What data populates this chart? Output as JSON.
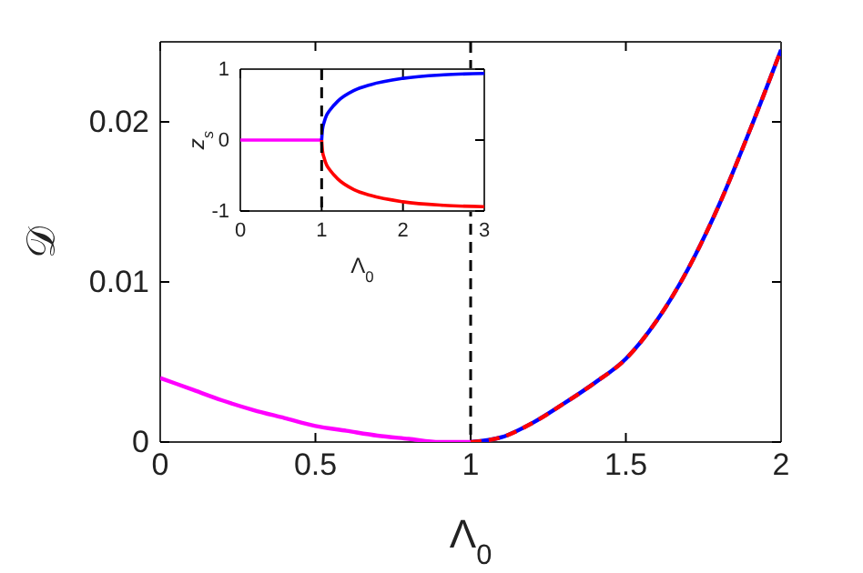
{
  "chart_data": [
    {
      "type": "line",
      "xlabel": "Λ$_{0}$",
      "ylabel": "𝒟",
      "xlim": [
        0,
        2
      ],
      "xticks": [
        0,
        0.5,
        1,
        1.5,
        2
      ],
      "ylim": [
        0,
        0.025
      ],
      "yticks": [
        0,
        0.01,
        0.02
      ],
      "grid": false,
      "ref_lines": [
        {
          "axis": "x",
          "value": 1,
          "color": "#000000",
          "line_style": "dashed"
        }
      ],
      "series": [
        {
          "color": "#ff00ff",
          "line_style": "solid",
          "x": [
            0,
            0.1,
            0.2,
            0.3,
            0.4,
            0.5,
            0.6,
            0.7,
            0.8,
            0.9,
            1
          ],
          "values": [
            0.004,
            0.0033,
            0.0026,
            0.002,
            0.0015,
            0.001,
            0.0007,
            0.0004,
            0.0002,
            0,
            0
          ]
        },
        {
          "color": "#0000ff",
          "line_style": "solid",
          "x": [
            1,
            1.1,
            1.2,
            1.3,
            1.4,
            1.5,
            1.6,
            1.7,
            1.8,
            1.9,
            2
          ],
          "values": [
            0,
            0.0003,
            0.0012,
            0.0024,
            0.0037,
            0.0052,
            0.0076,
            0.0108,
            0.0148,
            0.0195,
            0.0245
          ]
        },
        {
          "color": "#ff0000",
          "line_style": "dashed",
          "x": [
            1,
            1.1,
            1.2,
            1.3,
            1.4,
            1.5,
            1.6,
            1.7,
            1.8,
            1.9,
            2
          ],
          "values": [
            0,
            0.0003,
            0.0012,
            0.0024,
            0.0037,
            0.0052,
            0.0076,
            0.0108,
            0.0148,
            0.0195,
            0.0245
          ]
        }
      ]
    },
    {
      "type": "line",
      "xlabel": "Λ$_{0}$",
      "ylabel": "z$_{s}$",
      "xlim": [
        0,
        3
      ],
      "xticks": [
        0,
        1,
        2,
        3
      ],
      "ylim": [
        -1,
        1
      ],
      "yticks": [
        -1,
        0,
        1
      ],
      "grid": false,
      "ref_lines": [
        {
          "axis": "x",
          "value": 1,
          "color": "#000000",
          "line_style": "dashed"
        }
      ],
      "series": [
        {
          "color": "#ff00ff",
          "line_style": "solid",
          "x": [
            0,
            1
          ],
          "values": [
            0,
            0
          ]
        },
        {
          "color": "#0000ff",
          "line_style": "solid",
          "x": [
            1,
            1.01,
            1.03,
            1.06,
            1.1,
            1.2,
            1.4,
            1.6,
            2,
            2.5,
            3
          ],
          "values": [
            0,
            0.15,
            0.25,
            0.35,
            0.42,
            0.55,
            0.7,
            0.78,
            0.87,
            0.92,
            0.94
          ]
        },
        {
          "color": "#ff0000",
          "line_style": "solid",
          "x": [
            1,
            1.01,
            1.03,
            1.06,
            1.1,
            1.2,
            1.4,
            1.6,
            2,
            2.5,
            3
          ],
          "values": [
            0,
            -0.15,
            -0.25,
            -0.35,
            -0.42,
            -0.55,
            -0.7,
            -0.78,
            -0.87,
            -0.92,
            -0.94
          ]
        }
      ]
    }
  ]
}
